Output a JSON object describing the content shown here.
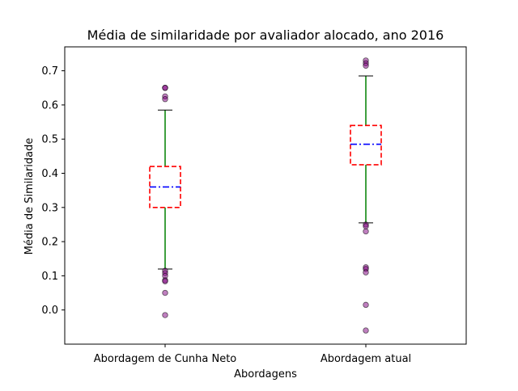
{
  "chart_data": {
    "type": "box",
    "title": "Média de similaridade por avaliador alocado, ano 2016",
    "xlabel": "Abordagens",
    "ylabel": "Média de Similaridade",
    "ylim": [
      -0.1,
      0.77
    ],
    "yticks": [
      0.0,
      0.1,
      0.2,
      0.3,
      0.4,
      0.5,
      0.6,
      0.7
    ],
    "ytick_labels": [
      "0.0",
      "0.1",
      "0.2",
      "0.3",
      "0.4",
      "0.5",
      "0.6",
      "0.7"
    ],
    "grid": false,
    "categories": [
      "Abordagem de Cunha Neto",
      "Abordagem atual"
    ],
    "boxes": [
      {
        "category": "Abordagem de Cunha Neto",
        "whisker_low": 0.12,
        "q1": 0.3,
        "median": 0.36,
        "q3": 0.42,
        "whisker_high": 0.585,
        "outliers": [
          0.65,
          0.65,
          0.625,
          0.617,
          0.115,
          0.108,
          0.1,
          0.087,
          0.084,
          0.05,
          -0.015
        ]
      },
      {
        "category": "Abordagem atual",
        "whisker_low": 0.255,
        "q1": 0.425,
        "median": 0.485,
        "q3": 0.54,
        "whisker_high": 0.685,
        "outliers": [
          0.73,
          0.722,
          0.715,
          0.25,
          0.245,
          0.23,
          0.125,
          0.12,
          0.11,
          0.015,
          -0.06
        ]
      }
    ],
    "colors": {
      "box_edge": "#ff0000",
      "median": "#0000ff",
      "whisker": "#008000",
      "cap": "#000000",
      "outlier_fill": "#800080",
      "outlier_edge": "#000000"
    }
  }
}
